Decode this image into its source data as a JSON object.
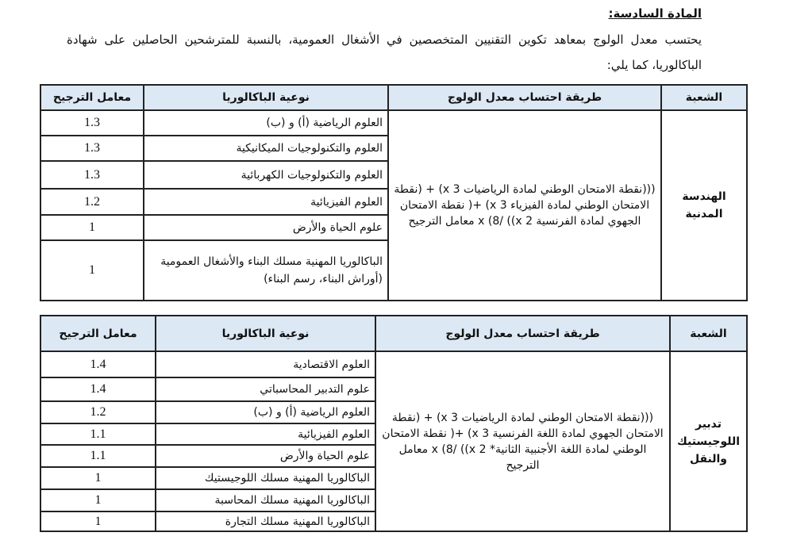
{
  "heading": "المادة السادسة:",
  "intro": "يحتسب معدل الولوج بمعاهد تكوين التقنيين المتخصصين في الأشغال العمومية، بالنسبة للمترشحين الحاصلين على شهادة الباكالوريا، كما يلي:",
  "headers": {
    "branch": "الشعبة",
    "formula": "طريقة احتساب معدل الولوج",
    "bac_type": "نوعية الباكالوريا",
    "coefficient": "معامل الترجيح"
  },
  "tables": [
    {
      "branch": "الهندسة المدنية",
      "formula": "(((نقطة الامتحان الوطني لمادة الرياضيات x 3) + (نقطة الامتحان الوطني لمادة الفيزياء x 3) +( نقطة الامتحان الجهوي لمادة الفرنسية x 2)) /8) x معامل الترجيح",
      "rows": [
        {
          "bac": "العلوم الرياضية (أ) و (ب)",
          "coef": "1.3"
        },
        {
          "bac": "العلوم والتكنولوجيات الميكانيكية",
          "coef": "1.3"
        },
        {
          "bac": "العلوم والتكنولوجيات الكهربائية",
          "coef": "1.3"
        },
        {
          "bac": "العلوم الفيزيائية",
          "coef": "1.2"
        },
        {
          "bac": "علوم الحياة والأرض",
          "coef": "1"
        },
        {
          "bac": "الباكالوريا المهنية مسلك البناء والأشغال العمومية (أوراش البناء، رسم البناء)",
          "coef": "1"
        }
      ]
    },
    {
      "branch": "تدبير اللوجيستيك والنقل",
      "formula": "(((نقطة الامتحان الوطني لمادة الرياضيات x 3) + (نقطة الامتحان الجهوي لمادة اللغة الفرنسية x 3) +( نقطة الامتحان الوطني لمادة اللغة الأجنبية الثانية* x 2)) /8) x معامل الترجيح",
      "rows": [
        {
          "bac": "العلوم الاقتصادية",
          "coef": "1.4"
        },
        {
          "bac": "علوم التدبير المحاسباتي",
          "coef": "1.4"
        },
        {
          "bac": "العلوم الرياضية (أ) و (ب)",
          "coef": "1.2"
        },
        {
          "bac": "العلوم الفيزيائية",
          "coef": "1.1"
        },
        {
          "bac": "علوم الحياة والأرض",
          "coef": "1.1"
        },
        {
          "bac": "الباكالوريا المهنية مسلك اللوجيستيك",
          "coef": "1"
        },
        {
          "bac": "الباكالوريا المهنية مسلك المحاسبة",
          "coef": "1"
        },
        {
          "bac": "الباكالوريا المهنية مسلك التجارة",
          "coef": "1"
        }
      ]
    }
  ]
}
